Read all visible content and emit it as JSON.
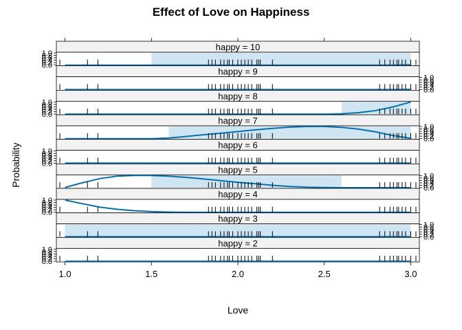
{
  "chart_data": {
    "type": "line",
    "title": "Effect of Love on Happiness",
    "xlabel": "Love",
    "ylabel": "Probability",
    "xlim": [
      0.95,
      3.05
    ],
    "xticks": [
      1.0,
      1.5,
      2.0,
      2.5,
      3.0
    ],
    "xtick_labels": [
      "1.0",
      "1.5",
      "2.0",
      "2.5",
      "3.0"
    ],
    "ylim": [
      0.0,
      1.0
    ],
    "yticks": [
      0.0,
      0.2,
      0.4,
      0.6,
      0.8,
      1.0
    ],
    "ytick_labels": [
      "0.0",
      "0.2",
      "0.4",
      "0.6",
      "0.8",
      "1.0"
    ],
    "colors": {
      "line": "#0072b2",
      "band": "#cfe5f2",
      "strip": "#f2f2f2",
      "rug": "#000000",
      "panel_border": "#000000"
    },
    "x": [
      1.0,
      1.1,
      1.2,
      1.3,
      1.4,
      1.5,
      1.6,
      1.7,
      1.8,
      1.9,
      2.0,
      2.1,
      2.2,
      2.3,
      2.4,
      2.5,
      2.6,
      2.7,
      2.8,
      2.9,
      3.0
    ],
    "series": [
      {
        "name": "happy = 10",
        "values": [
          0,
          0,
          0,
          0,
          0,
          0,
          0,
          0,
          0,
          0,
          0,
          0,
          0,
          0,
          0,
          0,
          0,
          0,
          0,
          0,
          0.02
        ],
        "band": {
          "x_from": 1.5,
          "x_to": 3.0,
          "lower": 0.0,
          "upper": 1.0
        }
      },
      {
        "name": "happy = 9",
        "values": [
          0,
          0,
          0,
          0,
          0,
          0,
          0,
          0,
          0,
          0,
          0,
          0,
          0,
          0,
          0,
          0,
          0,
          0,
          0,
          0,
          0.02
        ]
      },
      {
        "name": "happy = 8",
        "values": [
          0,
          0,
          0,
          0,
          0,
          0,
          0,
          0,
          0,
          0,
          0,
          0,
          0,
          0,
          0,
          0,
          0.03,
          0.12,
          0.3,
          0.6,
          1.0
        ],
        "band": {
          "x_from": 2.6,
          "x_to": 3.0,
          "lower": 0.0,
          "upper": 1.0
        }
      },
      {
        "name": "happy = 7",
        "values": [
          0,
          0,
          0,
          0,
          0,
          0,
          0.05,
          0.18,
          0.32,
          0.45,
          0.58,
          0.72,
          0.85,
          0.95,
          1.0,
          1.0,
          0.93,
          0.78,
          0.55,
          0.25,
          0.02
        ],
        "band": {
          "x_from": 1.6,
          "x_to": 3.0,
          "lower": 0.0,
          "upper": 1.0
        }
      },
      {
        "name": "happy = 6",
        "values": [
          0,
          0,
          0,
          0,
          0,
          0,
          0,
          0,
          0,
          0,
          0,
          0,
          0,
          0,
          0,
          0,
          0,
          0,
          0,
          0,
          0
        ]
      },
      {
        "name": "happy = 5",
        "values": [
          0.02,
          0.4,
          0.75,
          0.95,
          1.0,
          1.0,
          0.95,
          0.85,
          0.72,
          0.58,
          0.45,
          0.32,
          0.2,
          0.1,
          0.04,
          0.01,
          0,
          0,
          0,
          0,
          0
        ],
        "band": {
          "x_from": 1.5,
          "x_to": 2.6,
          "lower": 0.0,
          "upper": 1.0
        }
      },
      {
        "name": "happy = 4",
        "values": [
          1.0,
          0.7,
          0.42,
          0.24,
          0.12,
          0.05,
          0.01,
          0,
          0,
          0,
          0,
          0,
          0,
          0,
          0,
          0,
          0,
          0,
          0,
          0,
          0
        ]
      },
      {
        "name": "happy = 3",
        "values": [
          0,
          0,
          0,
          0,
          0,
          0,
          0,
          0,
          0,
          0,
          0,
          0,
          0,
          0,
          0,
          0,
          0,
          0,
          0,
          0,
          0
        ],
        "band": {
          "x_from": 1.0,
          "x_to": 3.0,
          "lower": 0.0,
          "upper": 1.0
        }
      },
      {
        "name": "happy = 2",
        "values": [
          0,
          0,
          0,
          0,
          0,
          0,
          0,
          0,
          0,
          0,
          0,
          0,
          0,
          0,
          0,
          0,
          0,
          0,
          0,
          0,
          0
        ]
      }
    ],
    "rug": [
      0.97,
      1.13,
      1.19,
      1.83,
      1.85,
      1.87,
      1.9,
      1.92,
      1.94,
      1.95,
      1.97,
      2.0,
      2.02,
      2.04,
      2.06,
      2.08,
      2.11,
      2.12,
      2.13,
      2.2,
      2.82,
      2.85,
      2.88,
      2.9,
      2.92,
      2.93,
      2.95,
      2.97,
      3.0,
      3.03
    ]
  }
}
